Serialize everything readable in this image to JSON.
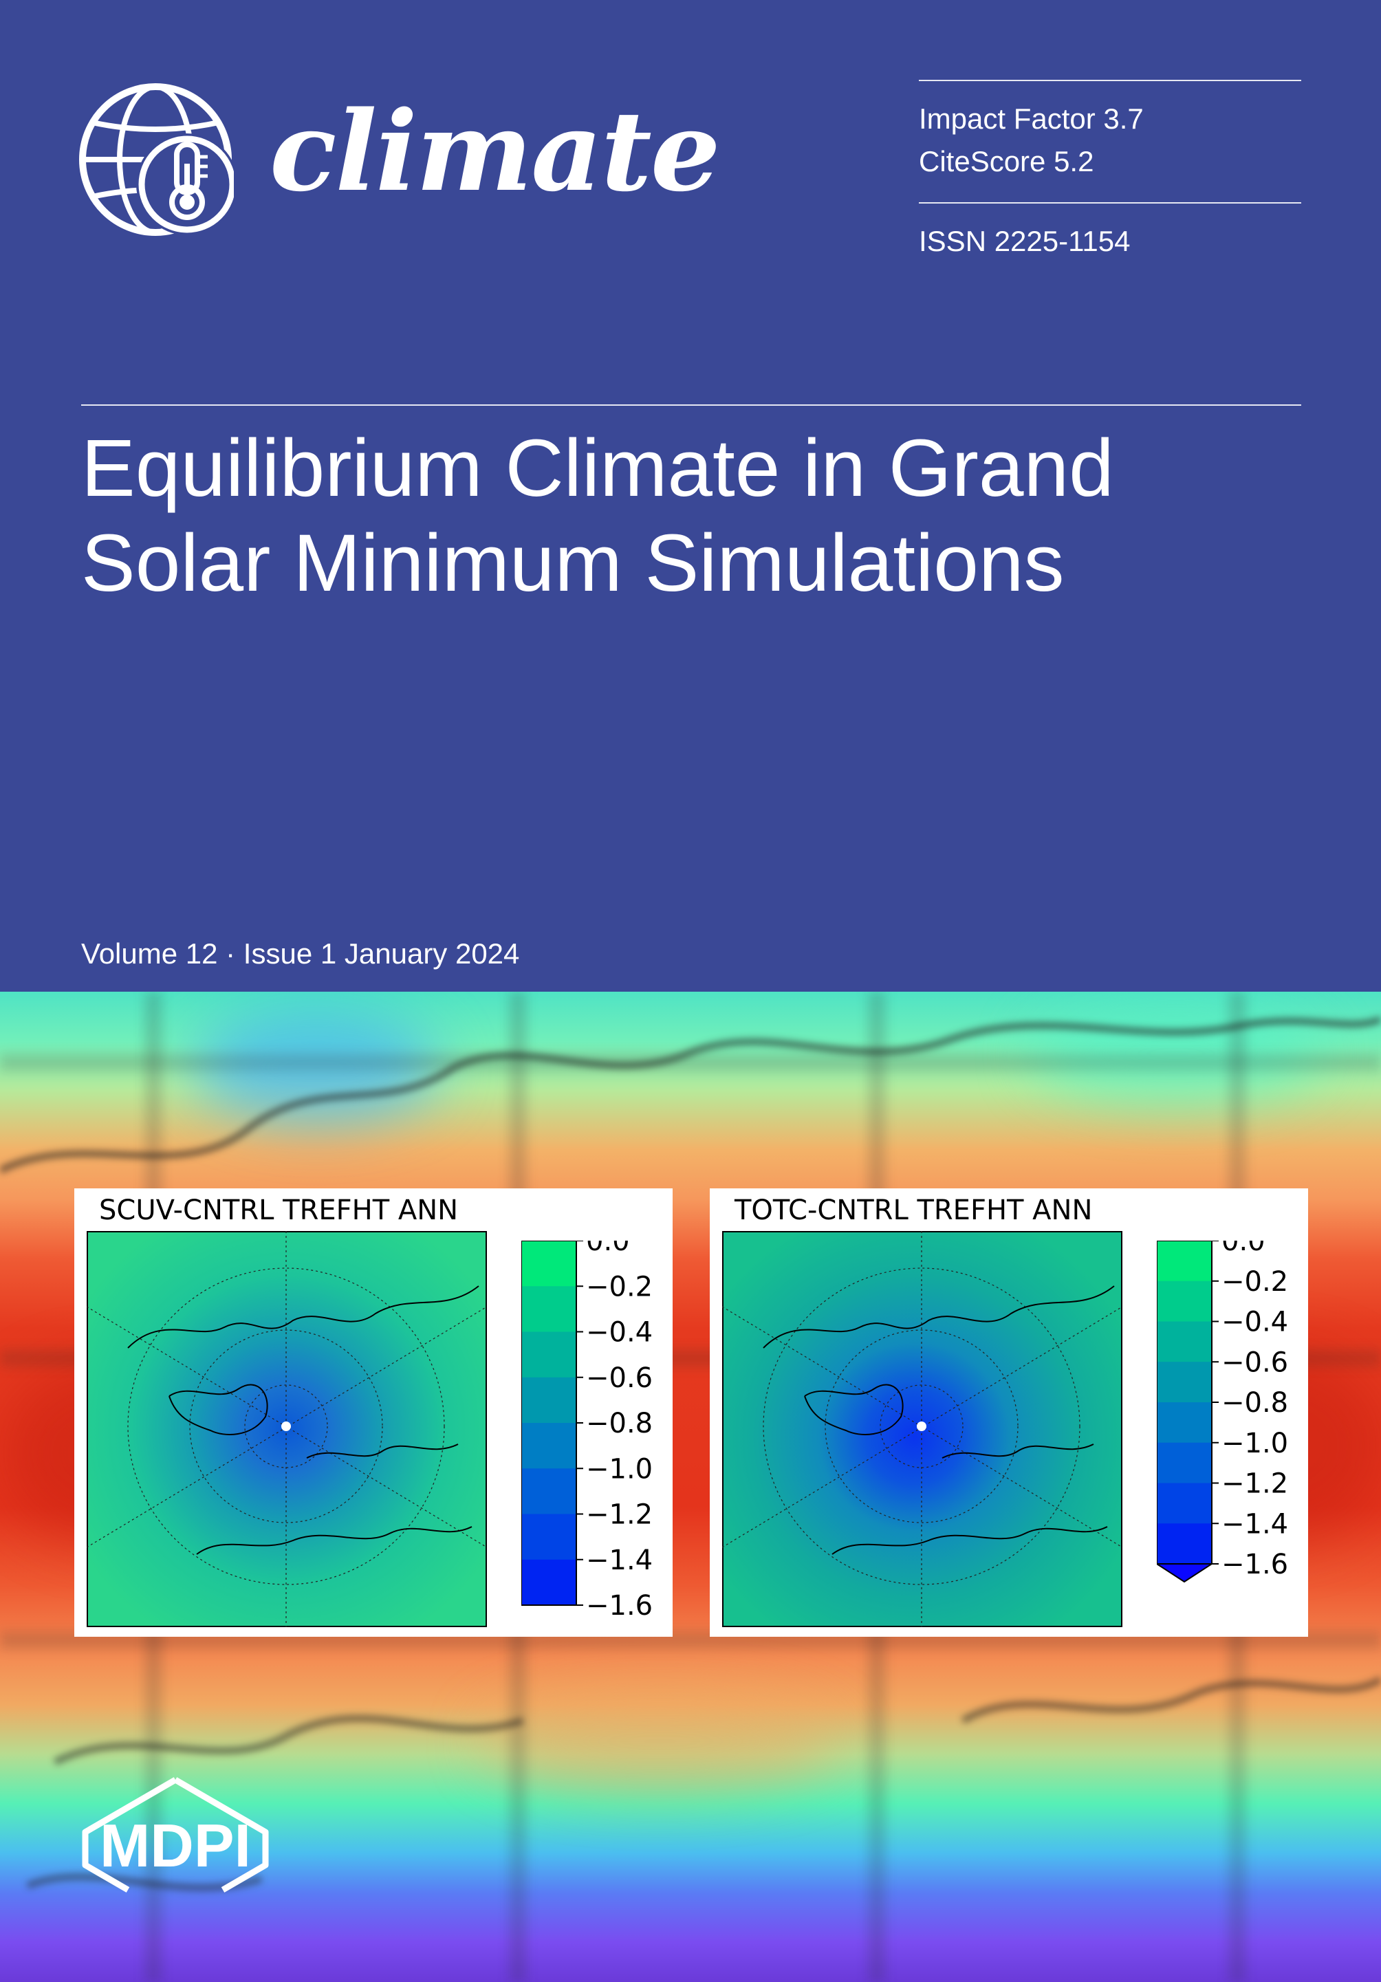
{
  "journal": {
    "name": "climate",
    "impact_factor": "Impact Factor 3.7",
    "citescore": "CiteScore 5.2",
    "issn": "ISSN 2225-1154"
  },
  "article": {
    "title_line1": "Equilibrium Climate in Grand",
    "title_line2": "Solar Minimum Simulations"
  },
  "issue": {
    "volume_line": "Volume 12 · Issue 1 January 2024"
  },
  "figures": [
    {
      "title": "SCUV-CNTRL TREFHT ANN",
      "colorbar_ticks": [
        "0.0",
        "−0.2",
        "−0.4",
        "−0.6",
        "−0.8",
        "−1.0",
        "−1.2",
        "−1.4",
        "−1.6"
      ],
      "extend_arrow": false
    },
    {
      "title": "TOTC-CNTRL TREFHT ANN",
      "colorbar_ticks": [
        "0.0",
        "−0.2",
        "−0.4",
        "−0.6",
        "−0.8",
        "−1.0",
        "−1.2",
        "−1.4",
        "−1.6"
      ],
      "extend_arrow": true
    }
  ],
  "colorbar_colors": [
    "#00e87a",
    "#00cc8c",
    "#00b29c",
    "#0098ae",
    "#007ec4",
    "#0060d8",
    "#0044e6",
    "#0024f2",
    "#0a08ff"
  ],
  "publisher": {
    "logo_text": "MDPI"
  },
  "colors": {
    "header_background": "#3a4896",
    "text": "#ffffff"
  }
}
